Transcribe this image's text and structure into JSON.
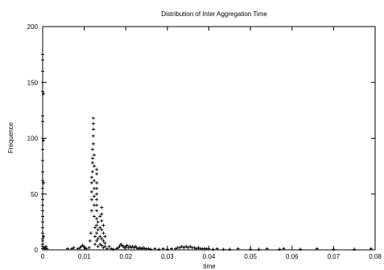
{
  "chart_data": {
    "type": "scatter",
    "title": "Distribution of Inter Aggregation Time",
    "xlabel": "time",
    "ylabel": "Frequence",
    "xlim": [
      0,
      0.08
    ],
    "ylim": [
      0,
      200
    ],
    "x_ticks": [
      0,
      0.01,
      0.02,
      0.03,
      0.04,
      0.05,
      0.06,
      0.07,
      0.08
    ],
    "x_tick_labels": [
      "0",
      "0.01",
      "0.02",
      "0.03",
      "0.04",
      "0.05",
      "0.06",
      "0.07",
      "0.08"
    ],
    "y_ticks": [
      0,
      50,
      100,
      150,
      200
    ],
    "y_tick_labels": [
      "0",
      "50",
      "100",
      "150",
      "200"
    ],
    "grid": false,
    "marker": "+",
    "color": "#000000",
    "points": [
      [
        0.0,
        175
      ],
      [
        0.0,
        170
      ],
      [
        0.0,
        160
      ],
      [
        0.0,
        150
      ],
      [
        0.0,
        142
      ],
      [
        0.0,
        120
      ],
      [
        0.0,
        115
      ],
      [
        0.0,
        100
      ],
      [
        0.0,
        90
      ],
      [
        0.0,
        80
      ],
      [
        0.0,
        70
      ],
      [
        0.0,
        62
      ],
      [
        0.0,
        55
      ],
      [
        0.0,
        50
      ],
      [
        0.0,
        45
      ],
      [
        0.0,
        40
      ],
      [
        0.0,
        35
      ],
      [
        0.0,
        30
      ],
      [
        0.0,
        25
      ],
      [
        0.0,
        20
      ],
      [
        0.0,
        15
      ],
      [
        0.0,
        10
      ],
      [
        0.0,
        8
      ],
      [
        0.0,
        5
      ],
      [
        0.0,
        3
      ],
      [
        0.0,
        1
      ],
      [
        0.0002,
        140
      ],
      [
        0.0002,
        98
      ],
      [
        0.0002,
        60
      ],
      [
        0.0002,
        12
      ],
      [
        0.0004,
        2
      ],
      [
        0.0006,
        1
      ],
      [
        0.0008,
        3
      ],
      [
        0.001,
        1
      ],
      [
        0.006,
        1
      ],
      [
        0.007,
        1
      ],
      [
        0.0075,
        2
      ],
      [
        0.0085,
        1
      ],
      [
        0.009,
        2
      ],
      [
        0.0093,
        3
      ],
      [
        0.0096,
        4
      ],
      [
        0.0099,
        3
      ],
      [
        0.0102,
        2
      ],
      [
        0.0105,
        1
      ],
      [
        0.0112,
        2
      ],
      [
        0.0114,
        8
      ],
      [
        0.0116,
        15
      ],
      [
        0.0118,
        35
      ],
      [
        0.0118,
        45
      ],
      [
        0.0118,
        52
      ],
      [
        0.0118,
        60
      ],
      [
        0.0118,
        65
      ],
      [
        0.012,
        70
      ],
      [
        0.012,
        78
      ],
      [
        0.012,
        82
      ],
      [
        0.012,
        90
      ],
      [
        0.0122,
        95
      ],
      [
        0.0122,
        102
      ],
      [
        0.0122,
        108
      ],
      [
        0.0122,
        113
      ],
      [
        0.0122,
        118
      ],
      [
        0.0124,
        85
      ],
      [
        0.0124,
        75
      ],
      [
        0.0124,
        62
      ],
      [
        0.0124,
        55
      ],
      [
        0.0124,
        48
      ],
      [
        0.0124,
        40
      ],
      [
        0.0124,
        30
      ],
      [
        0.0126,
        20
      ],
      [
        0.0126,
        12
      ],
      [
        0.0126,
        5
      ],
      [
        0.013,
        72
      ],
      [
        0.013,
        68
      ],
      [
        0.013,
        60
      ],
      [
        0.013,
        55
      ],
      [
        0.013,
        50
      ],
      [
        0.013,
        45
      ],
      [
        0.013,
        40
      ],
      [
        0.013,
        35
      ],
      [
        0.013,
        28
      ],
      [
        0.013,
        22
      ],
      [
        0.013,
        15
      ],
      [
        0.013,
        8
      ],
      [
        0.0133,
        25
      ],
      [
        0.0133,
        18
      ],
      [
        0.0133,
        10
      ],
      [
        0.0133,
        3
      ],
      [
        0.0138,
        30
      ],
      [
        0.0138,
        20
      ],
      [
        0.0138,
        12
      ],
      [
        0.0138,
        5
      ],
      [
        0.0142,
        38
      ],
      [
        0.0142,
        32
      ],
      [
        0.0142,
        26
      ],
      [
        0.0142,
        18
      ],
      [
        0.0142,
        10
      ],
      [
        0.0142,
        4
      ],
      [
        0.0146,
        22
      ],
      [
        0.0146,
        15
      ],
      [
        0.0146,
        8
      ],
      [
        0.0146,
        2
      ],
      [
        0.015,
        12
      ],
      [
        0.015,
        6
      ],
      [
        0.015,
        3
      ],
      [
        0.0155,
        1
      ],
      [
        0.016,
        3
      ],
      [
        0.0165,
        1
      ],
      [
        0.017,
        0.5
      ],
      [
        0.0178,
        1
      ],
      [
        0.0182,
        2
      ],
      [
        0.0185,
        3
      ],
      [
        0.0188,
        5
      ],
      [
        0.0191,
        4
      ],
      [
        0.0194,
        3
      ],
      [
        0.0197,
        2
      ],
      [
        0.02,
        3
      ],
      [
        0.0203,
        4
      ],
      [
        0.0206,
        2
      ],
      [
        0.021,
        3
      ],
      [
        0.0213,
        2
      ],
      [
        0.0216,
        3
      ],
      [
        0.022,
        2
      ],
      [
        0.0223,
        3
      ],
      [
        0.0226,
        2
      ],
      [
        0.023,
        1
      ],
      [
        0.0234,
        2
      ],
      [
        0.0238,
        1
      ],
      [
        0.0242,
        2
      ],
      [
        0.0246,
        1
      ],
      [
        0.025,
        1
      ],
      [
        0.0255,
        1
      ],
      [
        0.026,
        0.5
      ],
      [
        0.027,
        1
      ],
      [
        0.028,
        0.5
      ],
      [
        0.029,
        1
      ],
      [
        0.03,
        0.5
      ],
      [
        0.031,
        1
      ],
      [
        0.032,
        1
      ],
      [
        0.0325,
        2
      ],
      [
        0.033,
        2
      ],
      [
        0.0335,
        3
      ],
      [
        0.034,
        2
      ],
      [
        0.0345,
        3
      ],
      [
        0.035,
        2
      ],
      [
        0.0355,
        3
      ],
      [
        0.036,
        2
      ],
      [
        0.0365,
        2
      ],
      [
        0.037,
        1
      ],
      [
        0.0375,
        2
      ],
      [
        0.038,
        1
      ],
      [
        0.0385,
        1
      ],
      [
        0.039,
        1
      ],
      [
        0.0395,
        1
      ],
      [
        0.04,
        1
      ],
      [
        0.041,
        0.5
      ],
      [
        0.042,
        1
      ],
      [
        0.0435,
        0.5
      ],
      [
        0.045,
        0.5
      ],
      [
        0.047,
        1
      ],
      [
        0.05,
        0.5
      ],
      [
        0.052,
        0.5
      ],
      [
        0.054,
        1
      ],
      [
        0.057,
        0.5
      ],
      [
        0.058,
        1
      ],
      [
        0.062,
        0.5
      ],
      [
        0.066,
        1
      ],
      [
        0.07,
        0.5
      ],
      [
        0.075,
        0.5
      ],
      [
        0.079,
        1
      ]
    ]
  }
}
